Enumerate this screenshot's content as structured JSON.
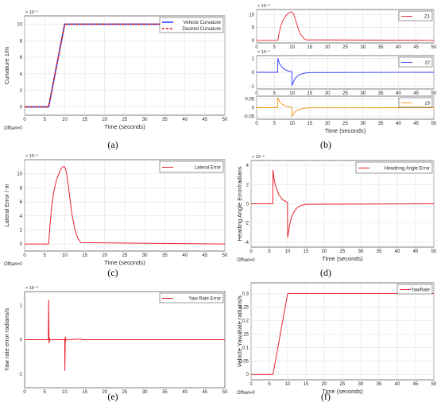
{
  "chart_data": [
    {
      "id": "a",
      "panel_label": "(a)",
      "type": "line",
      "xlabel": "Time (seconds)",
      "ylabel": "Curvature 1/m",
      "exponent_label": "× 10⁻³",
      "offset_label": "Offset=0",
      "xlim": [
        0,
        50
      ],
      "ylim": [
        -1,
        11
      ],
      "xticks": [
        0,
        5,
        10,
        15,
        20,
        25,
        30,
        35,
        40,
        45,
        50
      ],
      "yticks": [
        0,
        2,
        4,
        6,
        8,
        10
      ],
      "legend_position": "top-right",
      "grid": true,
      "series": [
        {
          "name": "Vehicle Curvature",
          "color": "#1f3fff",
          "dash": "solid",
          "width": 1.6,
          "x": [
            0,
            6,
            10,
            37
          ],
          "y": [
            0,
            0,
            10,
            10
          ]
        },
        {
          "name": "Desired Curvature",
          "color": "#d81e1e",
          "dash": "dashed",
          "width": 1.6,
          "x": [
            0,
            6,
            10,
            37
          ],
          "y": [
            0,
            0,
            10,
            10
          ]
        }
      ]
    },
    {
      "id": "b1",
      "panel_label": "",
      "type": "line",
      "xlabel": "",
      "ylabel": "",
      "exponent_label": "× 10⁻⁵",
      "offset_label": "",
      "xlim": [
        0,
        50
      ],
      "ylim": [
        -1,
        12
      ],
      "xticks": [
        0,
        5,
        10,
        15,
        20,
        25,
        30,
        35,
        40,
        45,
        50
      ],
      "yticks": [
        0,
        5,
        10
      ],
      "legend_position": "top-right",
      "grid": true,
      "series": [
        {
          "name": "Z1",
          "color": "#e8202a",
          "dash": "solid",
          "width": 0.9,
          "x": [
            0,
            6,
            6.3,
            6.8,
            7.3,
            8,
            8.8,
            9.5,
            10,
            10.4,
            10.8,
            11.3,
            11.8,
            12.5,
            13.2,
            14,
            50
          ],
          "y": [
            0,
            0,
            2.5,
            5.5,
            7.5,
            9.2,
            10.4,
            11,
            11,
            10.3,
            8.8,
            6.5,
            4.3,
            2.2,
            0.9,
            0.2,
            0
          ]
        }
      ]
    },
    {
      "id": "b2",
      "panel_label": "",
      "type": "line",
      "xlabel": "",
      "ylabel": "",
      "exponent_label": "× 10⁻⁴",
      "offset_label": "",
      "xlim": [
        0,
        50
      ],
      "ylim": [
        -1.2,
        1.2
      ],
      "xticks": [
        0,
        5,
        10,
        15,
        20,
        25,
        30,
        35,
        40,
        45,
        50
      ],
      "yticks": [
        -1,
        0,
        1
      ],
      "legend_position": "top-right",
      "grid": true,
      "series": [
        {
          "name": "z2",
          "color": "#2832ff",
          "dash": "solid",
          "width": 0.9,
          "x": [
            0,
            5.95,
            6,
            6.4,
            7,
            7.6,
            8.3,
            9,
            9.95,
            10,
            10.5,
            11,
            11.7,
            12.5,
            13.5,
            15,
            50
          ],
          "y": [
            0,
            0,
            1.0,
            0.65,
            0.42,
            0.27,
            0.16,
            0.09,
            0.04,
            -0.95,
            -0.62,
            -0.4,
            -0.24,
            -0.13,
            -0.06,
            -0.02,
            0
          ]
        }
      ]
    },
    {
      "id": "b3",
      "panel_label": "(b)",
      "type": "line",
      "xlabel": "Time (seconds)",
      "ylabel": "",
      "exponent_label": "",
      "offset_label": "",
      "xlim": [
        0,
        50
      ],
      "ylim": [
        -0.065,
        0.065
      ],
      "xticks": [
        0,
        5,
        10,
        15,
        20,
        25,
        30,
        35,
        40,
        45,
        50
      ],
      "yticks": [
        -0.05,
        0,
        0.05
      ],
      "ytick_labels": [
        "-0.05",
        "0",
        "0.05"
      ],
      "legend_position": "top-right",
      "grid": true,
      "series": [
        {
          "name": "z3",
          "color": "#f0920a",
          "dash": "solid",
          "width": 0.9,
          "x": [
            0,
            5.95,
            6,
            6.4,
            7,
            7.6,
            8.3,
            9,
            9.95,
            10,
            10.5,
            11,
            11.7,
            12.5,
            13.5,
            15,
            50
          ],
          "y": [
            0,
            0,
            0.055,
            0.036,
            0.023,
            0.015,
            0.009,
            0.005,
            0.002,
            -0.05,
            -0.033,
            -0.021,
            -0.013,
            -0.007,
            -0.003,
            -0.001,
            0
          ]
        }
      ]
    },
    {
      "id": "c",
      "panel_label": "(c)",
      "type": "line",
      "xlabel": "Time (seconds)",
      "ylabel": "Lateral Error / m",
      "exponent_label": "× 10⁻⁵",
      "offset_label": "Offset=0",
      "xlim": [
        0,
        50
      ],
      "ylim": [
        -1,
        12
      ],
      "xticks": [
        0,
        5,
        10,
        15,
        20,
        25,
        30,
        35,
        40,
        45,
        50
      ],
      "yticks": [
        0,
        2,
        4,
        6,
        8,
        10
      ],
      "legend_position": "top-right",
      "grid": true,
      "series": [
        {
          "name": "Lateral Error",
          "color": "#e8202a",
          "dash": "solid",
          "width": 1.0,
          "x": [
            0,
            6,
            6.3,
            6.8,
            7.3,
            8,
            8.8,
            9.5,
            10,
            10.4,
            10.8,
            11.3,
            11.8,
            12.5,
            13.2,
            14,
            50
          ],
          "y": [
            0,
            0,
            2.5,
            5.5,
            7.5,
            9.2,
            10.4,
            11,
            11,
            10.3,
            8.8,
            6.5,
            4.3,
            2.2,
            0.9,
            0.2,
            0
          ]
        }
      ]
    },
    {
      "id": "d",
      "panel_label": "(d)",
      "type": "line",
      "xlabel": "Time (seconds)",
      "ylabel": "Heading Angle Error/radians",
      "exponent_label": "× 10⁻⁶",
      "offset_label": "Offset=0",
      "xlim": [
        0,
        50
      ],
      "ylim": [
        -4.5,
        4.5
      ],
      "xticks": [
        0,
        5,
        10,
        15,
        20,
        25,
        30,
        35,
        40,
        45,
        50
      ],
      "yticks": [
        -4,
        -2,
        0,
        2,
        4
      ],
      "legend_position": "top-right",
      "grid": true,
      "series": [
        {
          "name": "Headinng Angle Error",
          "color": "#e8202a",
          "dash": "solid",
          "width": 1.0,
          "x": [
            0,
            5.95,
            6,
            6.4,
            7,
            7.6,
            8.3,
            9,
            9.95,
            10,
            10.5,
            11,
            11.7,
            12.5,
            13.5,
            15,
            50
          ],
          "y": [
            0,
            0,
            3.5,
            2.3,
            1.5,
            0.95,
            0.58,
            0.33,
            0.15,
            -3.5,
            -2.3,
            -1.45,
            -0.85,
            -0.45,
            -0.2,
            -0.05,
            0
          ]
        }
      ]
    },
    {
      "id": "e",
      "panel_label": "(e)",
      "type": "line",
      "xlabel": "",
      "ylabel": "Yaw rate error radians/s",
      "exponent_label": "× 10⁻⁴",
      "offset_label": "",
      "xlim": [
        0,
        50
      ],
      "ylim": [
        -1.4,
        1.4
      ],
      "xticks": [
        0,
        5,
        10,
        15,
        20,
        25,
        30,
        35,
        40,
        45,
        50
      ],
      "yticks": [
        -1,
        0,
        1
      ],
      "legend_position": "top-right",
      "grid": false,
      "series": [
        {
          "name": "Yaw Rate Error",
          "color": "#e8202a",
          "dash": "solid",
          "width": 1.0,
          "x": [
            0,
            5.9,
            6,
            6.1,
            6.3,
            6.6,
            7,
            10,
            10.05,
            10.15,
            10.3,
            10.6,
            11,
            14,
            14.5,
            50
          ],
          "y": [
            0,
            0,
            1.15,
            -0.1,
            0.02,
            -0.01,
            0,
            0,
            -0.9,
            0.08,
            -0.02,
            0.01,
            0,
            0.02,
            0,
            0
          ]
        }
      ]
    },
    {
      "id": "f",
      "panel_label": "(f)",
      "type": "line",
      "xlabel": "Time (seconds)",
      "ylabel": "Vehicle Yaw Rate radians/s",
      "exponent_label": "",
      "offset_label": "Offset=0",
      "xlim": [
        0,
        50
      ],
      "ylim": [
        -0.02,
        0.34
      ],
      "xticks": [
        0,
        5,
        10,
        15,
        20,
        25,
        30,
        35,
        40,
        45,
        50
      ],
      "yticks": [
        0,
        0.05,
        0.1,
        0.15,
        0.2,
        0.25,
        0.3
      ],
      "ytick_labels": [
        "0",
        "0.05",
        "0.1",
        "0.15",
        "0.2",
        "0.25",
        "0.3"
      ],
      "legend_position": "top-right",
      "grid": true,
      "series": [
        {
          "name": "YawRate",
          "color": "#e8202a",
          "dash": "solid",
          "width": 1.0,
          "x": [
            0,
            6,
            10,
            50
          ],
          "y": [
            0,
            0,
            0.3,
            0.3
          ]
        }
      ]
    }
  ]
}
